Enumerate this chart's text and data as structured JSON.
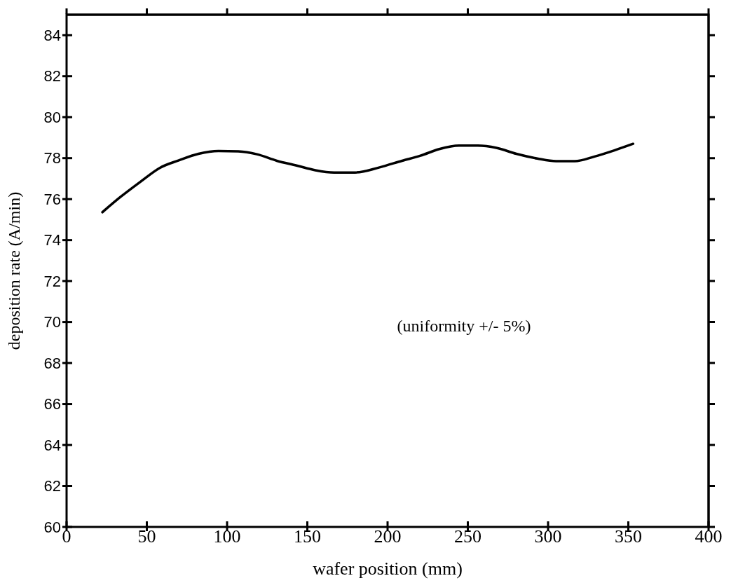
{
  "chart_data": {
    "type": "line",
    "xlabel": "wafer position (mm)",
    "ylabel": "deposition rate (A/min)",
    "annotations": [
      "(uniformity +/- 5%)"
    ],
    "x": [
      22.3,
      33.5,
      45.9,
      58.2,
      69.9,
      82.2,
      94.6,
      107,
      118.6,
      131,
      143.3,
      155,
      166.7,
      179.8,
      195,
      209,
      220.5,
      232.2,
      244.5,
      256.2,
      267.8,
      280.2,
      293.3,
      305,
      316.6,
      329,
      341.3,
      353
    ],
    "series": [
      {
        "color": "#000000",
        "values": [
          75.36,
          76.1,
          76.84,
          77.53,
          77.89,
          78.21,
          78.35,
          78.33,
          78.19,
          77.87,
          77.64,
          77.41,
          77.3,
          77.3,
          77.55,
          77.87,
          78.12,
          78.44,
          78.61,
          78.61,
          78.5,
          78.21,
          77.98,
          77.85,
          77.85,
          78.08,
          78.38,
          78.7
        ]
      }
    ],
    "xlim": [
      0,
      400
    ],
    "xticks": [
      0,
      50,
      100,
      150,
      200,
      250,
      300,
      350,
      400
    ],
    "ylim": [
      60,
      85
    ],
    "yticks": [
      60,
      62,
      64,
      66,
      68,
      70,
      72,
      74,
      76,
      78,
      80,
      82,
      84
    ],
    "grid": false
  }
}
